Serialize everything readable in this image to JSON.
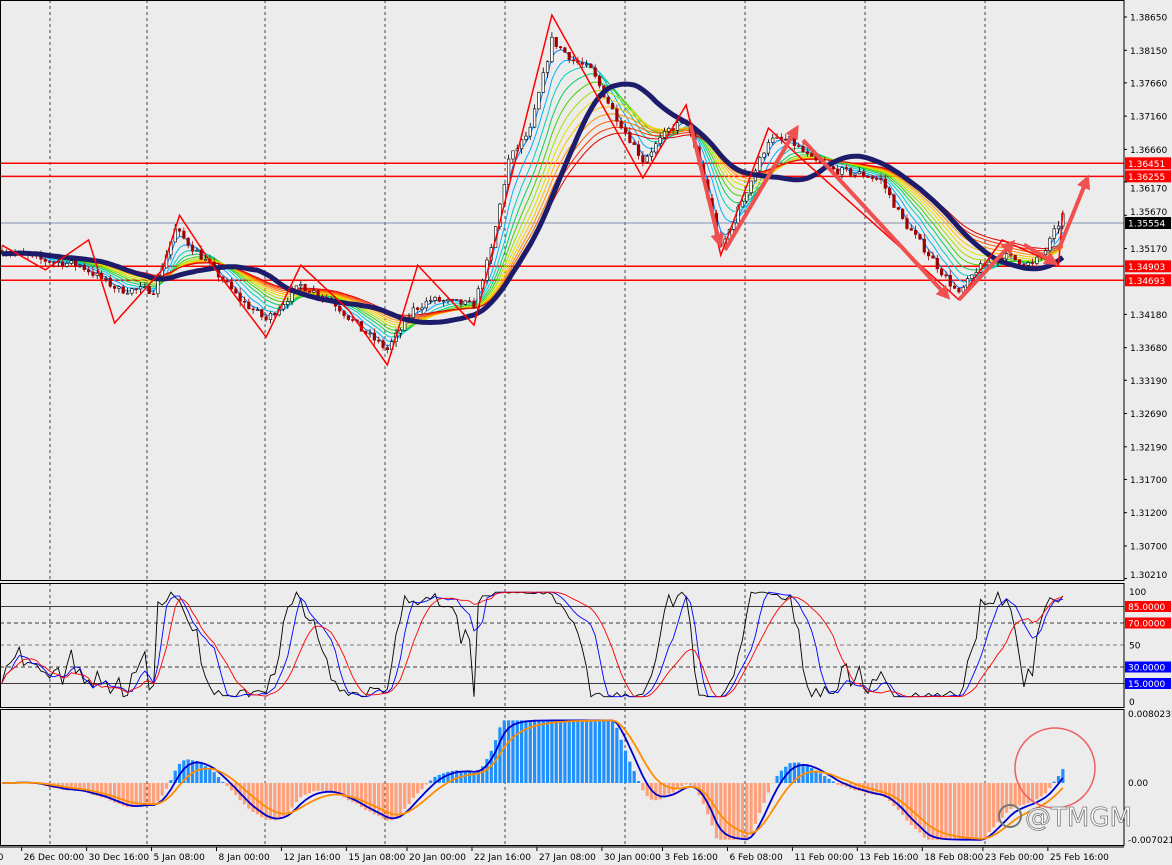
{
  "chart_data": {
    "type": "candlestick",
    "symbol_panel": "price",
    "price_axis": {
      "ticks": [
        "1.38650",
        "1.38150",
        "1.37660",
        "1.37160",
        "1.36660",
        "1.36170",
        "1.35670",
        "1.35170",
        "1.34180",
        "1.33680",
        "1.33190",
        "1.32690",
        "1.32190",
        "1.31700",
        "1.31200",
        "1.30700",
        "1.30210"
      ],
      "tick_values": [
        1.3865,
        1.3815,
        1.3766,
        1.3716,
        1.3666,
        1.3617,
        1.3567,
        1.3517,
        1.3418,
        1.3368,
        1.3319,
        1.3269,
        1.3219,
        1.317,
        1.312,
        1.307,
        1.3021
      ],
      "ylim": [
        1.3021,
        1.3875
      ]
    },
    "current_price": {
      "label": "1.35554",
      "value": 1.35554,
      "color": "#000000"
    },
    "horizontal_levels": [
      {
        "label": "1.36451",
        "value": 1.36451,
        "color": "#ff0000"
      },
      {
        "label": "1.36255",
        "value": 1.36255,
        "color": "#ff0000"
      },
      {
        "label": "1.34903",
        "value": 1.34903,
        "color": "#ff0000"
      },
      {
        "label": "1.34693",
        "value": 1.34693,
        "color": "#ff0000"
      }
    ],
    "time_axis": {
      "labels": [
        ":00",
        "26 Dec 00:00",
        "30 Dec 16:00",
        "5 Jan 08:00",
        "8 Jan 00:00",
        "12 Jan 16:00",
        "15 Jan 08:00",
        "20 Jan 00:00",
        "22 Jan 16:00",
        "27 Jan 08:00",
        "30 Jan 00:00",
        "3 Feb 16:00",
        "6 Feb 08:00",
        "11 Feb 00:00",
        "13 Feb 16:00",
        "18 Feb 08:00",
        "23 Feb 00:00",
        "25 Feb 16:00"
      ],
      "label_bars": [
        -3,
        5,
        20,
        35,
        50,
        65,
        80,
        94,
        109,
        124,
        139,
        153,
        168,
        183,
        198,
        213,
        227,
        242
      ]
    },
    "bar_count": 246,
    "price_path": [
      [
        0,
        1.3515
      ],
      [
        9,
        1.35
      ],
      [
        18,
        1.3492
      ],
      [
        27,
        1.3455
      ],
      [
        35,
        1.3455
      ],
      [
        40,
        1.3545
      ],
      [
        48,
        1.3492
      ],
      [
        55,
        1.344
      ],
      [
        61,
        1.341
      ],
      [
        69,
        1.3462
      ],
      [
        76,
        1.344
      ],
      [
        83,
        1.3395
      ],
      [
        89,
        1.3365
      ],
      [
        95,
        1.3425
      ],
      [
        99,
        1.344
      ],
      [
        109,
        1.3432
      ],
      [
        113,
        1.3515
      ],
      [
        117,
        1.365
      ],
      [
        122,
        1.3695
      ],
      [
        127,
        1.383
      ],
      [
        132,
        1.38
      ],
      [
        136,
        1.3785
      ],
      [
        141,
        1.3725
      ],
      [
        148,
        1.365
      ],
      [
        154,
        1.3695
      ],
      [
        158,
        1.371
      ],
      [
        162,
        1.362
      ],
      [
        166,
        1.3515
      ],
      [
        171,
        1.359
      ],
      [
        177,
        1.368
      ],
      [
        182,
        1.368
      ],
      [
        187,
        1.365
      ],
      [
        192,
        1.3635
      ],
      [
        199,
        1.3628
      ],
      [
        203,
        1.362
      ],
      [
        208,
        1.356
      ],
      [
        215,
        1.35
      ],
      [
        221,
        1.3447
      ],
      [
        225,
        1.3485
      ],
      [
        231,
        1.3507
      ],
      [
        238,
        1.3492
      ],
      [
        241,
        1.3515
      ],
      [
        245,
        1.3567
      ]
    ],
    "zigzag": [
      [
        0,
        1.3522
      ],
      [
        10,
        1.3485
      ],
      [
        20,
        1.353
      ],
      [
        26,
        1.3405
      ],
      [
        37,
        1.3485
      ],
      [
        41,
        1.3567
      ],
      [
        49,
        1.3488
      ],
      [
        61,
        1.3384
      ],
      [
        69,
        1.3492
      ],
      [
        80,
        1.3425
      ],
      [
        89,
        1.3342
      ],
      [
        96,
        1.3492
      ],
      [
        109,
        1.3402
      ],
      [
        127,
        1.3868
      ],
      [
        148,
        1.3623
      ],
      [
        158,
        1.3733
      ],
      [
        166,
        1.3507
      ],
      [
        177,
        1.3698
      ],
      [
        185,
        1.365
      ],
      [
        221,
        1.344
      ],
      [
        231,
        1.353
      ],
      [
        244,
        1.3492
      ],
      [
        245,
        1.3572
      ]
    ],
    "arrows": [
      {
        "from": [
          159,
          1.3703
        ],
        "to": [
          166,
          1.3518
        ]
      },
      {
        "from": [
          167,
          1.3515
        ],
        "to": [
          184,
          1.3703
        ]
      },
      {
        "from": [
          185,
          1.368
        ],
        "to": [
          219,
          1.344
        ]
      },
      {
        "from": [
          221,
          1.344
        ],
        "to": [
          234,
          1.353
        ]
      },
      {
        "from": [
          236,
          1.3523
        ],
        "to": [
          244,
          1.3492
        ]
      },
      {
        "from": [
          244,
          1.3515
        ],
        "to": [
          251,
          1.3628
        ]
      }
    ],
    "stochastic": {
      "ylim": [
        0,
        100
      ],
      "ticks": [
        "100",
        "50",
        "0"
      ],
      "levels": [
        {
          "label": "85.0000",
          "value": 85,
          "color": "#ff0000",
          "style": "solid"
        },
        {
          "label": "70.0000",
          "value": 70,
          "color": "#ff0000",
          "style": "dashed"
        },
        {
          "label": "50",
          "value": 50,
          "color": "#808080",
          "style": "dashed"
        },
        {
          "label": "30.0000",
          "value": 30,
          "color": "#0000ff",
          "style": "dashed"
        },
        {
          "label": "15.0000",
          "value": 15,
          "color": "#0000ff",
          "style": "solid"
        }
      ],
      "series_colors": [
        "#000000",
        "#0000ff",
        "#ff0000"
      ]
    },
    "macd": {
      "ticks": [
        "0.0080237",
        "0.00",
        "-0.007021"
      ],
      "ylim": [
        -0.007021,
        0.0080237
      ],
      "positive_color": "#1e90ff",
      "negative_color": "#ffa07a",
      "line_colors": [
        "#0000cd",
        "#ff8c00"
      ]
    },
    "ma_ribbon_colors": [
      "#0080ff",
      "#00b0ff",
      "#00d0c0",
      "#00d060",
      "#40d000",
      "#a0e000",
      "#e0e000",
      "#ffc000",
      "#ff9000",
      "#ff6000",
      "#ff3000",
      "#e00000"
    ],
    "slow_ma_color": "#1c1c6a",
    "highlight_circle_color": "#f06060"
  },
  "watermark": {
    "text": "@TMGM"
  }
}
